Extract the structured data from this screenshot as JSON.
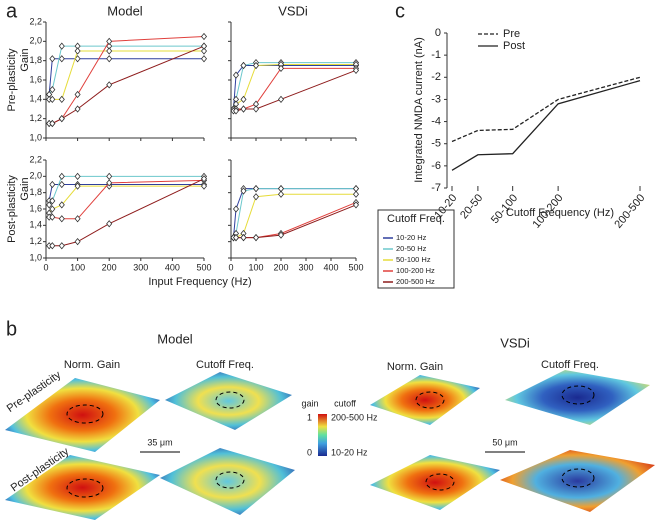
{
  "panel_labels": [
    "a",
    "b",
    "c"
  ],
  "chart_data": [
    {
      "type": "line",
      "columns": [
        "Model",
        "VSDi"
      ],
      "rows": [
        "Pre-plasticity",
        "Post-plasticity"
      ],
      "ylabel": "Gain",
      "xlabel": "Input Frequency (Hz)",
      "legend_title": "Cutoff Freq.",
      "x": [
        10,
        20,
        50,
        100,
        200,
        500
      ],
      "xlim": [
        0,
        500
      ],
      "xticks": [
        0,
        100,
        200,
        300,
        400,
        500
      ],
      "ylim": [
        1.0,
        2.2
      ],
      "yticks": [
        {
          "value": 1.0,
          "label": "1,0"
        },
        {
          "value": 1.2,
          "label": "1,2"
        },
        {
          "value": 1.4,
          "label": "1,4"
        },
        {
          "value": 1.6,
          "label": "1,6"
        },
        {
          "value": 1.8,
          "label": "1,8"
        },
        {
          "value": 2.0,
          "label": "2,0"
        },
        {
          "value": 2.2,
          "label": "2,2"
        }
      ],
      "series": [
        {
          "name": "10-20 Hz",
          "color": "#2f3f9e",
          "values": [
            [
              1.45,
              1.82,
              1.82,
              1.82,
              1.82,
              1.82
            ],
            [
              1.3,
              1.65,
              1.75,
              1.75,
              1.75,
              1.75
            ],
            [
              1.7,
              1.9,
              1.9,
              1.9,
              1.9,
              1.9
            ],
            [
              1.25,
              1.6,
              1.85,
              1.85,
              1.85,
              1.85
            ]
          ]
        },
        {
          "name": "20-50 Hz",
          "color": "#6cc8cc",
          "values": [
            [
              1.45,
              1.5,
              1.95,
              1.95,
              1.95,
              1.95
            ],
            [
              1.3,
              1.4,
              1.75,
              1.78,
              1.78,
              1.78
            ],
            [
              1.65,
              1.7,
              2.0,
              2.0,
              2.0,
              2.0
            ],
            [
              1.25,
              1.3,
              1.82,
              1.85,
              1.85,
              1.85
            ]
          ]
        },
        {
          "name": "50-100 Hz",
          "color": "#e6dc3a",
          "values": [
            [
              1.4,
              1.4,
              1.4,
              1.9,
              1.9,
              1.9
            ],
            [
              1.3,
              1.35,
              1.4,
              1.75,
              1.76,
              1.76
            ],
            [
              1.55,
              1.6,
              1.65,
              1.88,
              1.88,
              1.88
            ],
            [
              1.25,
              1.25,
              1.3,
              1.75,
              1.78,
              1.78
            ]
          ]
        },
        {
          "name": "100-200 Hz",
          "color": "#e0403c",
          "values": [
            [
              1.15,
              1.15,
              1.2,
              1.45,
              2.0,
              2.05
            ],
            [
              1.3,
              1.3,
              1.3,
              1.35,
              1.72,
              1.72
            ],
            [
              1.5,
              1.5,
              1.48,
              1.48,
              1.92,
              1.95
            ],
            [
              1.25,
              1.25,
              1.25,
              1.25,
              1.3,
              1.68
            ]
          ]
        },
        {
          "name": "200-500 Hz",
          "color": "#8e1c1c",
          "values": [
            [
              1.15,
              1.15,
              1.2,
              1.3,
              1.55,
              1.95
            ],
            [
              1.28,
              1.28,
              1.3,
              1.3,
              1.4,
              1.7
            ],
            [
              1.15,
              1.15,
              1.15,
              1.2,
              1.42,
              1.97
            ],
            [
              1.25,
              1.25,
              1.25,
              1.25,
              1.28,
              1.65
            ]
          ]
        }
      ]
    },
    {
      "type": "line",
      "ylabel": "Integrated NMDA current (nA)",
      "xlabel": "Cutoff Frequency (Hz)",
      "categories": [
        "10-20",
        "20-50",
        "50-100",
        "100-200",
        "200-500"
      ],
      "ylim": [
        -7,
        0
      ],
      "yticks": [
        0,
        -1,
        -2,
        -3,
        -4,
        -5,
        -6,
        -7
      ],
      "series": [
        {
          "name": "Pre",
          "color": "#222222",
          "line_style": "dashed",
          "values": [
            -4.9,
            -4.4,
            -4.35,
            -3.0,
            -2.0
          ]
        },
        {
          "name": "Post",
          "color": "#222222",
          "line_style": "solid",
          "values": [
            -6.2,
            -5.5,
            -5.45,
            -3.2,
            -2.15
          ]
        }
      ]
    }
  ],
  "panel_b": {
    "columns": [
      "Model",
      "VSDi"
    ],
    "maps": [
      "Norm. Gain",
      "Cutoff Freq."
    ],
    "rows": [
      "Pre-plasticity",
      "Post-plasticity"
    ],
    "scale_bars": [
      "35 μm",
      "50 μm"
    ],
    "colorbar": {
      "gain_title": "gain",
      "cutoff_title": "cutoff",
      "top": "1",
      "bottom": "0",
      "top_label": "200-500 Hz",
      "bottom_label": "10-20 Hz"
    }
  }
}
